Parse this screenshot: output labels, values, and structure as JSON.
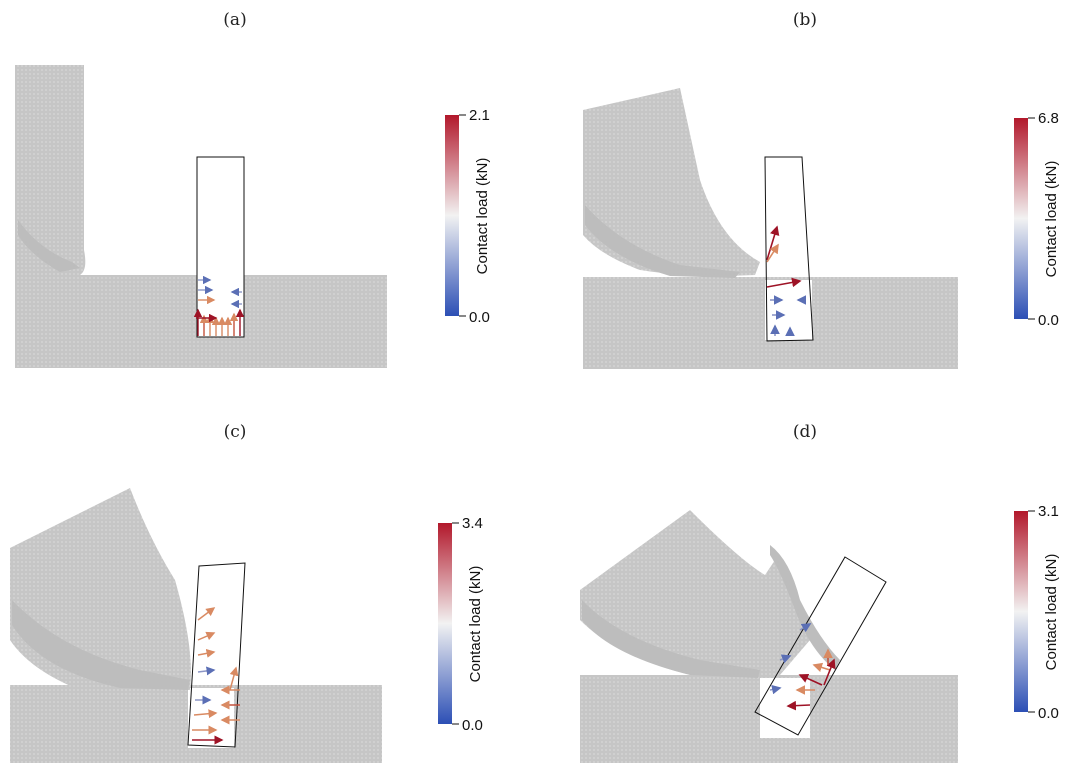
{
  "panels": [
    {
      "label": "(a)",
      "colorbar": {
        "title": "Contact load (kN)",
        "max": "2.1",
        "min": "0.0"
      }
    },
    {
      "label": "(b)",
      "colorbar": {
        "title": "Contact load (kN)",
        "max": "6.8",
        "min": "0.0"
      }
    },
    {
      "label": "(c)",
      "colorbar": {
        "title": "Contact load (kN)",
        "max": "3.4",
        "min": "0.0"
      }
    },
    {
      "label": "(d)",
      "colorbar": {
        "title": "Contact load (kN)",
        "max": "3.1",
        "min": "0.0"
      }
    }
  ],
  "colors": {
    "material": "#c8c8c8",
    "high": "#b2182b",
    "mid": "#f2f2f2",
    "low": "#2c4fb5"
  }
}
